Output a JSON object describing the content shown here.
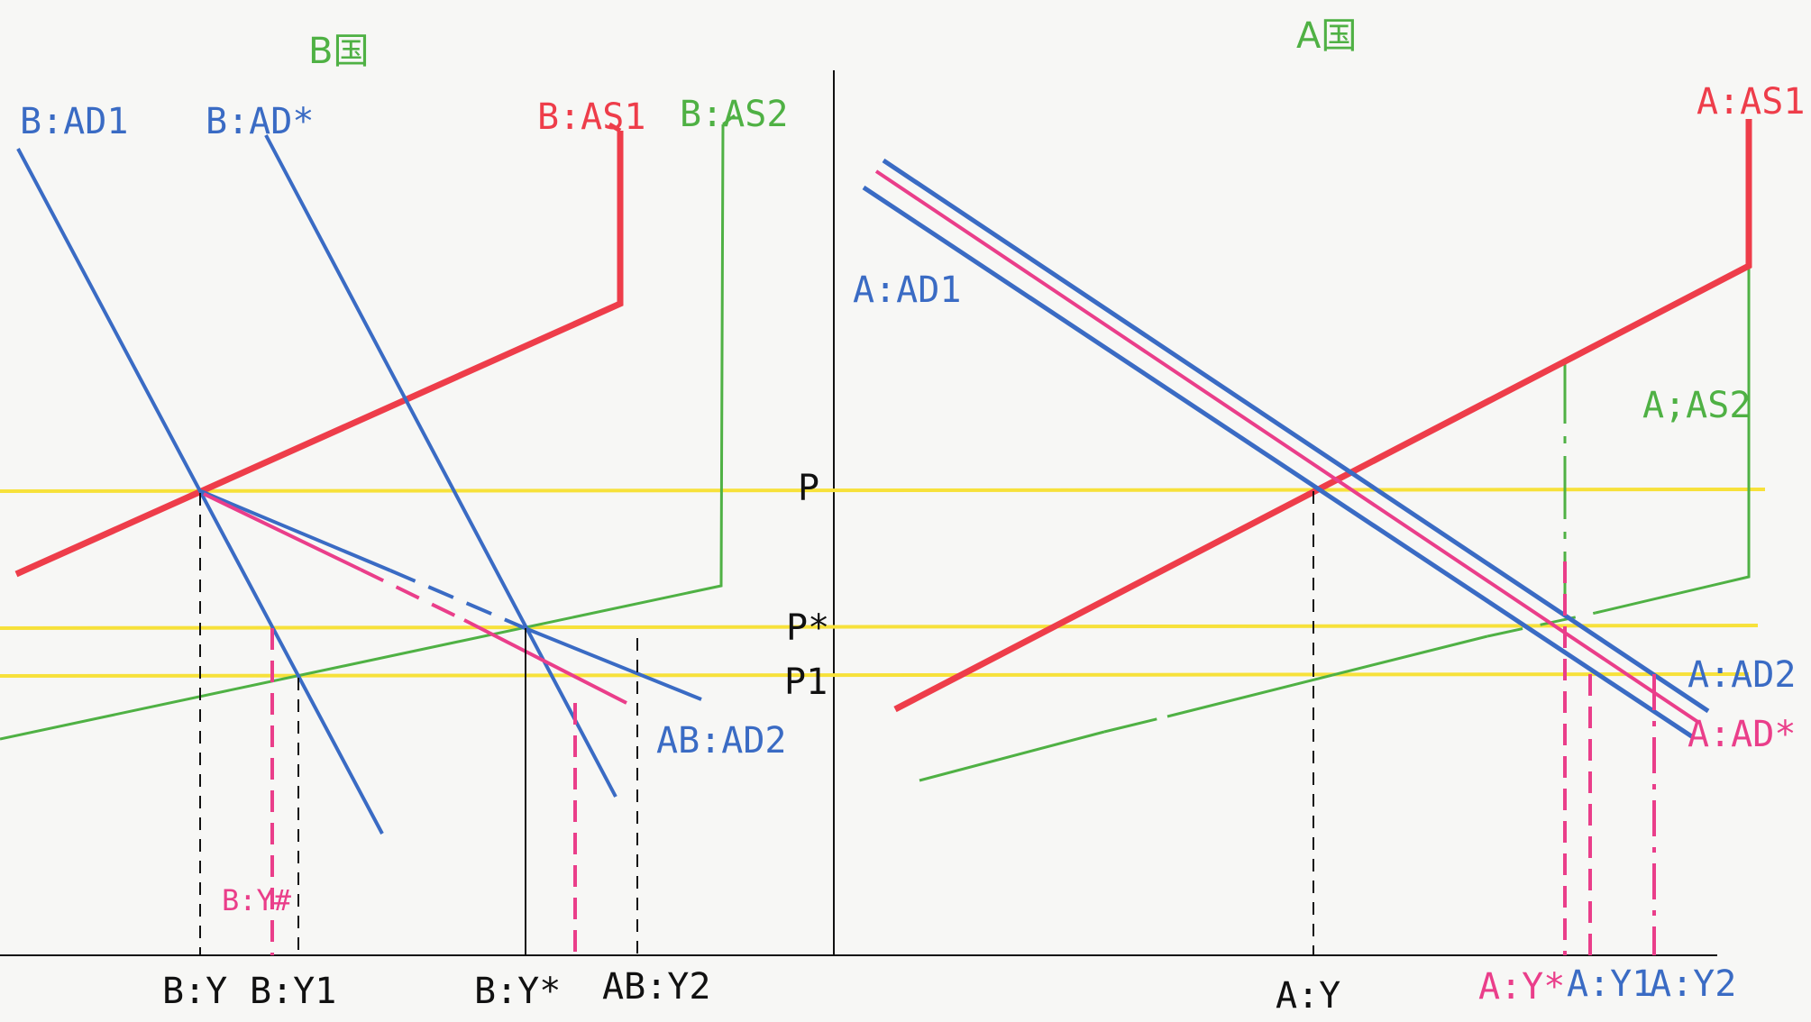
{
  "titles": {
    "country_b": "B国",
    "country_a": "A国"
  },
  "curves": {
    "b_ad1": "B:AD1",
    "b_ad_star": "B:AD*",
    "b_as1": "B:AS1",
    "b_as2": "B:AS2",
    "ab_ad2": "AB:AD2",
    "a_ad1": "A:AD1",
    "a_as1": "A:AS1",
    "a_as2": "A;AS2",
    "a_ad2": "A:AD2",
    "a_ad_star": "A:AD*"
  },
  "price_levels": {
    "p": "P",
    "p_star": "P*",
    "p1": "P1"
  },
  "output_levels": {
    "b_y": "B:Y",
    "b_y1": "B:Y1",
    "b_y_star": "B:Y*",
    "ab_y2": "AB:Y2",
    "b_y_hash": "B:Y#",
    "a_y": "A:Y",
    "a_y_star": "A:Y*",
    "a_y1": "A:Y1",
    "a_y2": "A:Y2"
  },
  "colors": {
    "blue": "#3a6bc4",
    "red": "#ee3d4a",
    "pink": "#ea3e8a",
    "green": "#4fb144",
    "yellow": "#f7e13a",
    "black": "#111111"
  }
}
